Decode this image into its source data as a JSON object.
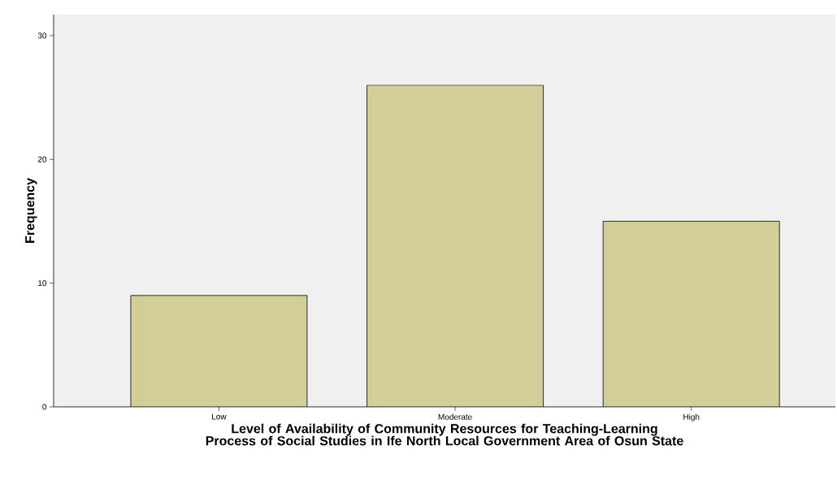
{
  "chart_data": {
    "type": "bar",
    "xlabel": "Level of Availability of Community Resources for Teaching-Learning Process of Social Studies in Ife North Local Government Area of Osun State",
    "ylabel": "Frequency",
    "categories": [
      "Low",
      "Moderate",
      "High"
    ],
    "values": [
      9,
      26,
      15
    ],
    "color": "#d3ce97",
    "ylim": [
      0,
      31.7
    ],
    "yticks": [
      0,
      10,
      20,
      30
    ]
  }
}
